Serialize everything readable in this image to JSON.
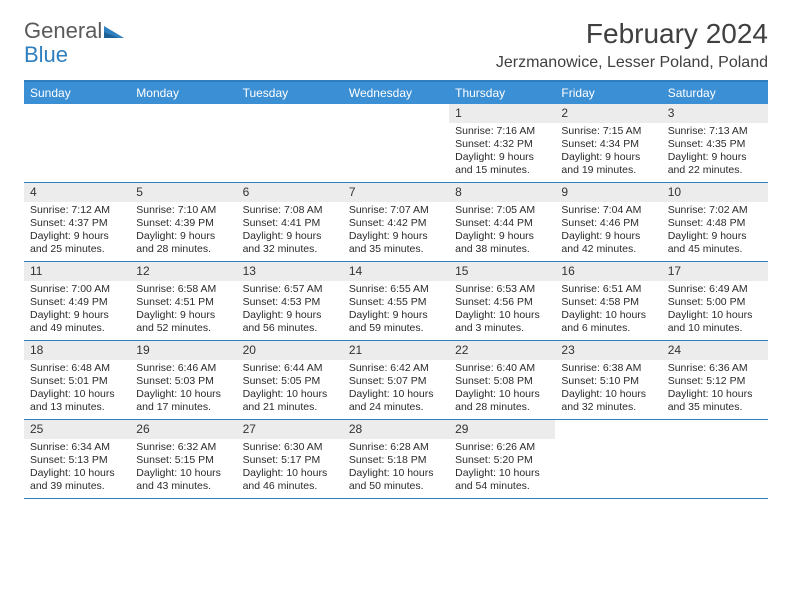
{
  "brand": {
    "word1": "General",
    "word2": "Blue"
  },
  "title": "February 2024",
  "location": "Jerzmanowice, Lesser Poland, Poland",
  "theme": {
    "header_bg": "#3b8fd4",
    "header_text": "#ffffff",
    "rule_color": "#2f7fbf",
    "daynum_bg": "#ececec",
    "text_color": "#2b2b2b",
    "brand_gray": "#5a5a5a",
    "brand_blue": "#2f7fbf"
  },
  "days_of_week": [
    "Sunday",
    "Monday",
    "Tuesday",
    "Wednesday",
    "Thursday",
    "Friday",
    "Saturday"
  ],
  "weeks": [
    [
      {
        "empty": true
      },
      {
        "empty": true
      },
      {
        "empty": true
      },
      {
        "empty": true
      },
      {
        "num": "1",
        "sunrise": "Sunrise: 7:16 AM",
        "sunset": "Sunset: 4:32 PM",
        "day1": "Daylight: 9 hours",
        "day2": "and 15 minutes."
      },
      {
        "num": "2",
        "sunrise": "Sunrise: 7:15 AM",
        "sunset": "Sunset: 4:34 PM",
        "day1": "Daylight: 9 hours",
        "day2": "and 19 minutes."
      },
      {
        "num": "3",
        "sunrise": "Sunrise: 7:13 AM",
        "sunset": "Sunset: 4:35 PM",
        "day1": "Daylight: 9 hours",
        "day2": "and 22 minutes."
      }
    ],
    [
      {
        "num": "4",
        "sunrise": "Sunrise: 7:12 AM",
        "sunset": "Sunset: 4:37 PM",
        "day1": "Daylight: 9 hours",
        "day2": "and 25 minutes."
      },
      {
        "num": "5",
        "sunrise": "Sunrise: 7:10 AM",
        "sunset": "Sunset: 4:39 PM",
        "day1": "Daylight: 9 hours",
        "day2": "and 28 minutes."
      },
      {
        "num": "6",
        "sunrise": "Sunrise: 7:08 AM",
        "sunset": "Sunset: 4:41 PM",
        "day1": "Daylight: 9 hours",
        "day2": "and 32 minutes."
      },
      {
        "num": "7",
        "sunrise": "Sunrise: 7:07 AM",
        "sunset": "Sunset: 4:42 PM",
        "day1": "Daylight: 9 hours",
        "day2": "and 35 minutes."
      },
      {
        "num": "8",
        "sunrise": "Sunrise: 7:05 AM",
        "sunset": "Sunset: 4:44 PM",
        "day1": "Daylight: 9 hours",
        "day2": "and 38 minutes."
      },
      {
        "num": "9",
        "sunrise": "Sunrise: 7:04 AM",
        "sunset": "Sunset: 4:46 PM",
        "day1": "Daylight: 9 hours",
        "day2": "and 42 minutes."
      },
      {
        "num": "10",
        "sunrise": "Sunrise: 7:02 AM",
        "sunset": "Sunset: 4:48 PM",
        "day1": "Daylight: 9 hours",
        "day2": "and 45 minutes."
      }
    ],
    [
      {
        "num": "11",
        "sunrise": "Sunrise: 7:00 AM",
        "sunset": "Sunset: 4:49 PM",
        "day1": "Daylight: 9 hours",
        "day2": "and 49 minutes."
      },
      {
        "num": "12",
        "sunrise": "Sunrise: 6:58 AM",
        "sunset": "Sunset: 4:51 PM",
        "day1": "Daylight: 9 hours",
        "day2": "and 52 minutes."
      },
      {
        "num": "13",
        "sunrise": "Sunrise: 6:57 AM",
        "sunset": "Sunset: 4:53 PM",
        "day1": "Daylight: 9 hours",
        "day2": "and 56 minutes."
      },
      {
        "num": "14",
        "sunrise": "Sunrise: 6:55 AM",
        "sunset": "Sunset: 4:55 PM",
        "day1": "Daylight: 9 hours",
        "day2": "and 59 minutes."
      },
      {
        "num": "15",
        "sunrise": "Sunrise: 6:53 AM",
        "sunset": "Sunset: 4:56 PM",
        "day1": "Daylight: 10 hours",
        "day2": "and 3 minutes."
      },
      {
        "num": "16",
        "sunrise": "Sunrise: 6:51 AM",
        "sunset": "Sunset: 4:58 PM",
        "day1": "Daylight: 10 hours",
        "day2": "and 6 minutes."
      },
      {
        "num": "17",
        "sunrise": "Sunrise: 6:49 AM",
        "sunset": "Sunset: 5:00 PM",
        "day1": "Daylight: 10 hours",
        "day2": "and 10 minutes."
      }
    ],
    [
      {
        "num": "18",
        "sunrise": "Sunrise: 6:48 AM",
        "sunset": "Sunset: 5:01 PM",
        "day1": "Daylight: 10 hours",
        "day2": "and 13 minutes."
      },
      {
        "num": "19",
        "sunrise": "Sunrise: 6:46 AM",
        "sunset": "Sunset: 5:03 PM",
        "day1": "Daylight: 10 hours",
        "day2": "and 17 minutes."
      },
      {
        "num": "20",
        "sunrise": "Sunrise: 6:44 AM",
        "sunset": "Sunset: 5:05 PM",
        "day1": "Daylight: 10 hours",
        "day2": "and 21 minutes."
      },
      {
        "num": "21",
        "sunrise": "Sunrise: 6:42 AM",
        "sunset": "Sunset: 5:07 PM",
        "day1": "Daylight: 10 hours",
        "day2": "and 24 minutes."
      },
      {
        "num": "22",
        "sunrise": "Sunrise: 6:40 AM",
        "sunset": "Sunset: 5:08 PM",
        "day1": "Daylight: 10 hours",
        "day2": "and 28 minutes."
      },
      {
        "num": "23",
        "sunrise": "Sunrise: 6:38 AM",
        "sunset": "Sunset: 5:10 PM",
        "day1": "Daylight: 10 hours",
        "day2": "and 32 minutes."
      },
      {
        "num": "24",
        "sunrise": "Sunrise: 6:36 AM",
        "sunset": "Sunset: 5:12 PM",
        "day1": "Daylight: 10 hours",
        "day2": "and 35 minutes."
      }
    ],
    [
      {
        "num": "25",
        "sunrise": "Sunrise: 6:34 AM",
        "sunset": "Sunset: 5:13 PM",
        "day1": "Daylight: 10 hours",
        "day2": "and 39 minutes."
      },
      {
        "num": "26",
        "sunrise": "Sunrise: 6:32 AM",
        "sunset": "Sunset: 5:15 PM",
        "day1": "Daylight: 10 hours",
        "day2": "and 43 minutes."
      },
      {
        "num": "27",
        "sunrise": "Sunrise: 6:30 AM",
        "sunset": "Sunset: 5:17 PM",
        "day1": "Daylight: 10 hours",
        "day2": "and 46 minutes."
      },
      {
        "num": "28",
        "sunrise": "Sunrise: 6:28 AM",
        "sunset": "Sunset: 5:18 PM",
        "day1": "Daylight: 10 hours",
        "day2": "and 50 minutes."
      },
      {
        "num": "29",
        "sunrise": "Sunrise: 6:26 AM",
        "sunset": "Sunset: 5:20 PM",
        "day1": "Daylight: 10 hours",
        "day2": "and 54 minutes."
      },
      {
        "empty": true
      },
      {
        "empty": true
      }
    ]
  ]
}
